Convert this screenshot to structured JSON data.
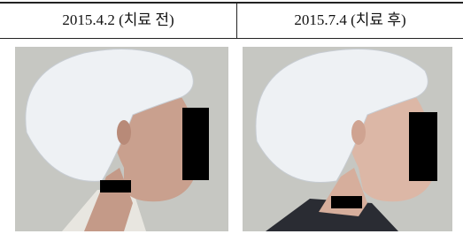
{
  "table": {
    "headers": [
      "2015.4.2 (치료 전)",
      "2015.7.4 (치료 후)"
    ]
  }
}
